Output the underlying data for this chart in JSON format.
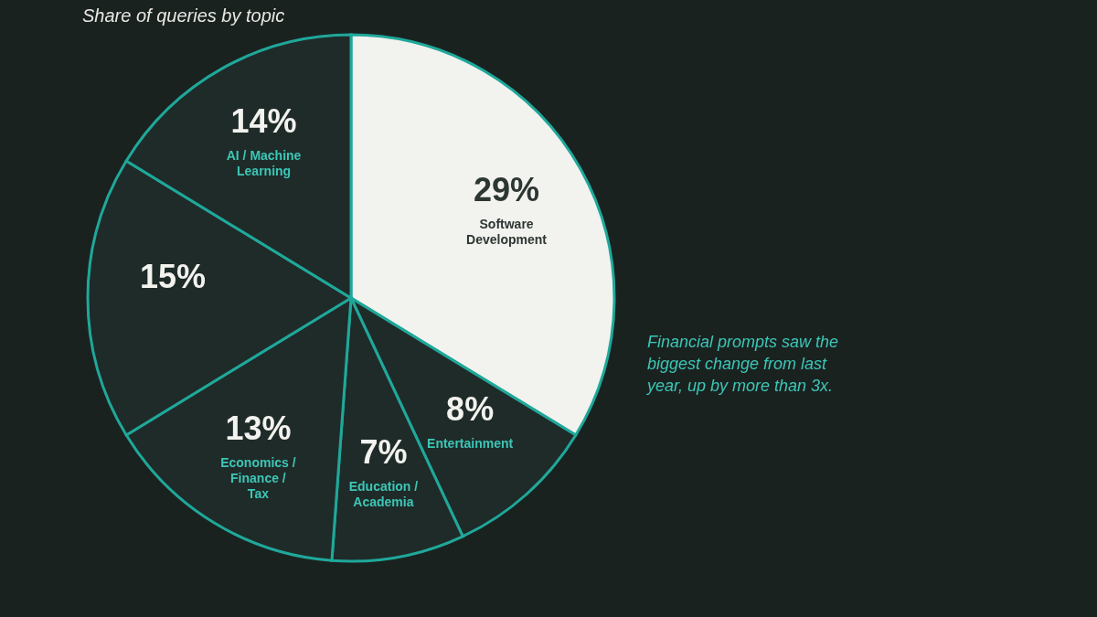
{
  "chart_data": {
    "type": "pie",
    "subtitle": "Share of queries by topic",
    "categories": [
      "Software Development",
      "Entertainment",
      "Education / Academia",
      "Economics / Finance / Tax",
      null,
      "AI / Machine Learning"
    ],
    "values": [
      29,
      8,
      7,
      13,
      15,
      14
    ],
    "colors": [
      "#f2f2ee",
      "#1f2b29",
      "#1f2b29",
      "#1f2b29",
      "#1f2b29",
      "#1f2b29"
    ],
    "value_labels": [
      "29%",
      "8%",
      "7%",
      "13%",
      "15%",
      "14%"
    ],
    "annotations": [
      "Financial prompts saw the biggest change from last year, up by more than 3x."
    ]
  }
}
